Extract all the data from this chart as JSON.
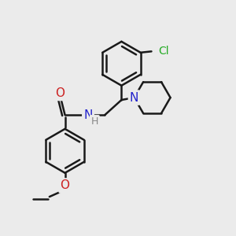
{
  "background_color": "#ebebeb",
  "bond_color": "#1a1a1a",
  "bond_width": 1.8,
  "dbo": 0.09,
  "atom_colors": {
    "N": "#2222cc",
    "O": "#cc2222",
    "Cl": "#22aa22",
    "H": "#888888"
  },
  "font_size": 10,
  "fig_size": [
    3.0,
    3.0
  ],
  "dpi": 100
}
